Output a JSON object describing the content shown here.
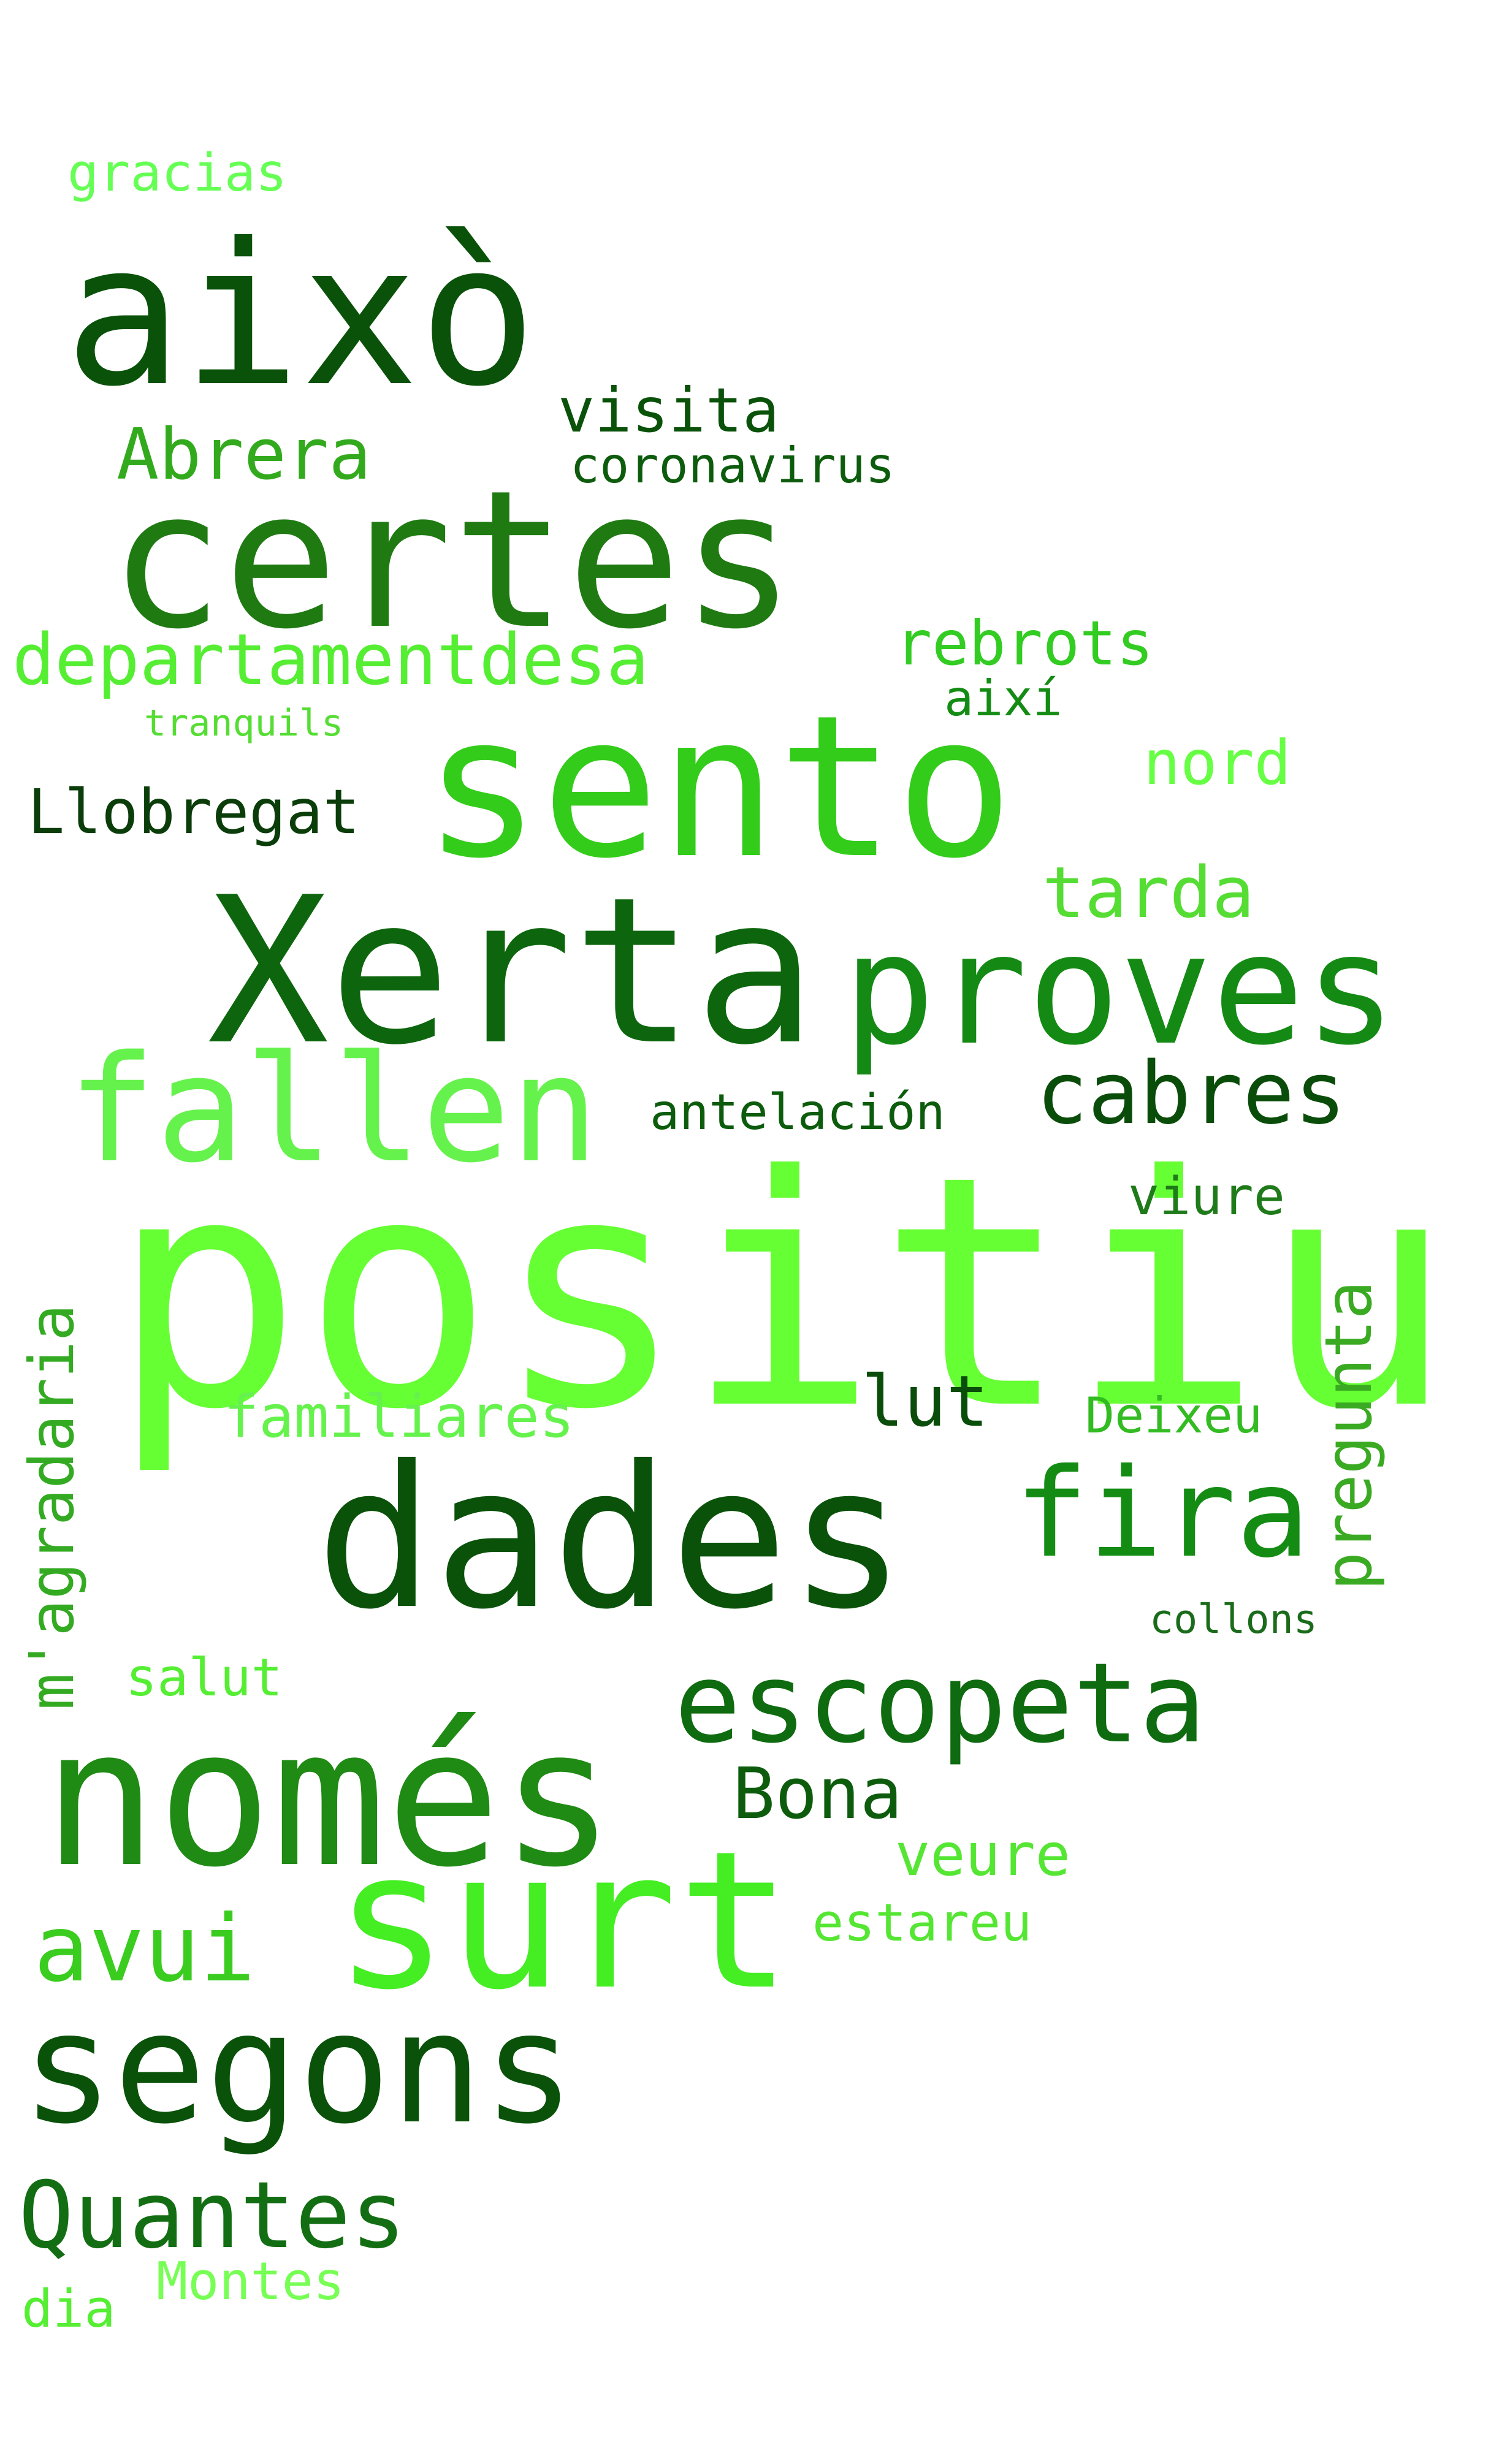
{
  "words": {
    "positiu": {
      "text": "positiu",
      "color": "#66ff33"
    },
    "xerta": {
      "text": "Xerta",
      "color": "#0d660d"
    },
    "sento": {
      "text": "sento",
      "color": "#33cc1a"
    },
    "certes": {
      "text": "certes",
      "color": "#1f7a12"
    },
    "aixo": {
      "text": "això",
      "color": "#0a520a"
    },
    "dades": {
      "text": "dades",
      "color": "#0a520a"
    },
    "nomes": {
      "text": "només",
      "color": "#1f8a14"
    },
    "surt": {
      "text": "surt",
      "color": "#44ee22"
    },
    "segons": {
      "text": "segons",
      "color": "#0a520a"
    },
    "proves": {
      "text": "proves",
      "color": "#148a14"
    },
    "fallen": {
      "text": "fallen",
      "color": "#66f24d"
    },
    "fira": {
      "text": "fira",
      "color": "#148c14"
    },
    "escopeta": {
      "text": "escopeta",
      "color": "#0f6b0f"
    },
    "quantes": {
      "text": "Quantes",
      "color": "#136e13"
    },
    "cabres": {
      "text": "cabres",
      "color": "#0a4d0a"
    },
    "avui": {
      "text": "avui",
      "color": "#3acc1e"
    },
    "departament": {
      "text": "departamentdesa",
      "color": "#55ee33"
    },
    "abrera": {
      "text": "Abrera",
      "color": "#33aa1e"
    },
    "bona": {
      "text": "Bona",
      "color": "#0d5c0d"
    },
    "lut": {
      "text": "lut",
      "color": "#0a4d0a"
    },
    "tarda": {
      "text": "tarda",
      "color": "#55dd33"
    },
    "llobregat": {
      "text": "Llobregat",
      "color": "#0a3d0a"
    },
    "magradaria": {
      "text": "m'agradaria",
      "color": "#33aa22"
    },
    "pregunta": {
      "text": "pregunta",
      "color": "#3aaa22"
    },
    "rebrots": {
      "text": "rebrots",
      "color": "#33cc22"
    },
    "nord": {
      "text": "nord",
      "color": "#66ff44"
    },
    "visita": {
      "text": "visita",
      "color": "#0a520a"
    },
    "veure": {
      "text": "veure",
      "color": "#55e633"
    },
    "coronavirus": {
      "text": "coronavirus",
      "color": "#0d5c0d"
    },
    "antelacion": {
      "text": "antelación",
      "color": "#0d5c0d"
    },
    "familiares": {
      "text": "familiares",
      "color": "#66f24d"
    },
    "estareu": {
      "text": "estareu",
      "color": "#55e633"
    },
    "gracias": {
      "text": "gracias",
      "color": "#66ff55"
    },
    "salut": {
      "text": "salut",
      "color": "#55ee33"
    },
    "viure": {
      "text": "viure",
      "color": "#1f7a1a"
    },
    "deixeu": {
      "text": "Deixeu",
      "color": "#33bb22"
    },
    "aixi": {
      "text": "així",
      "color": "#148c14"
    },
    "montes": {
      "text": "Montes",
      "color": "#77ff55"
    },
    "dia": {
      "text": "dia",
      "color": "#55ee33"
    },
    "collons": {
      "text": "collons",
      "color": "#1a6b1a"
    },
    "tranquils": {
      "text": "tranquils",
      "color": "#55dd33"
    }
  }
}
